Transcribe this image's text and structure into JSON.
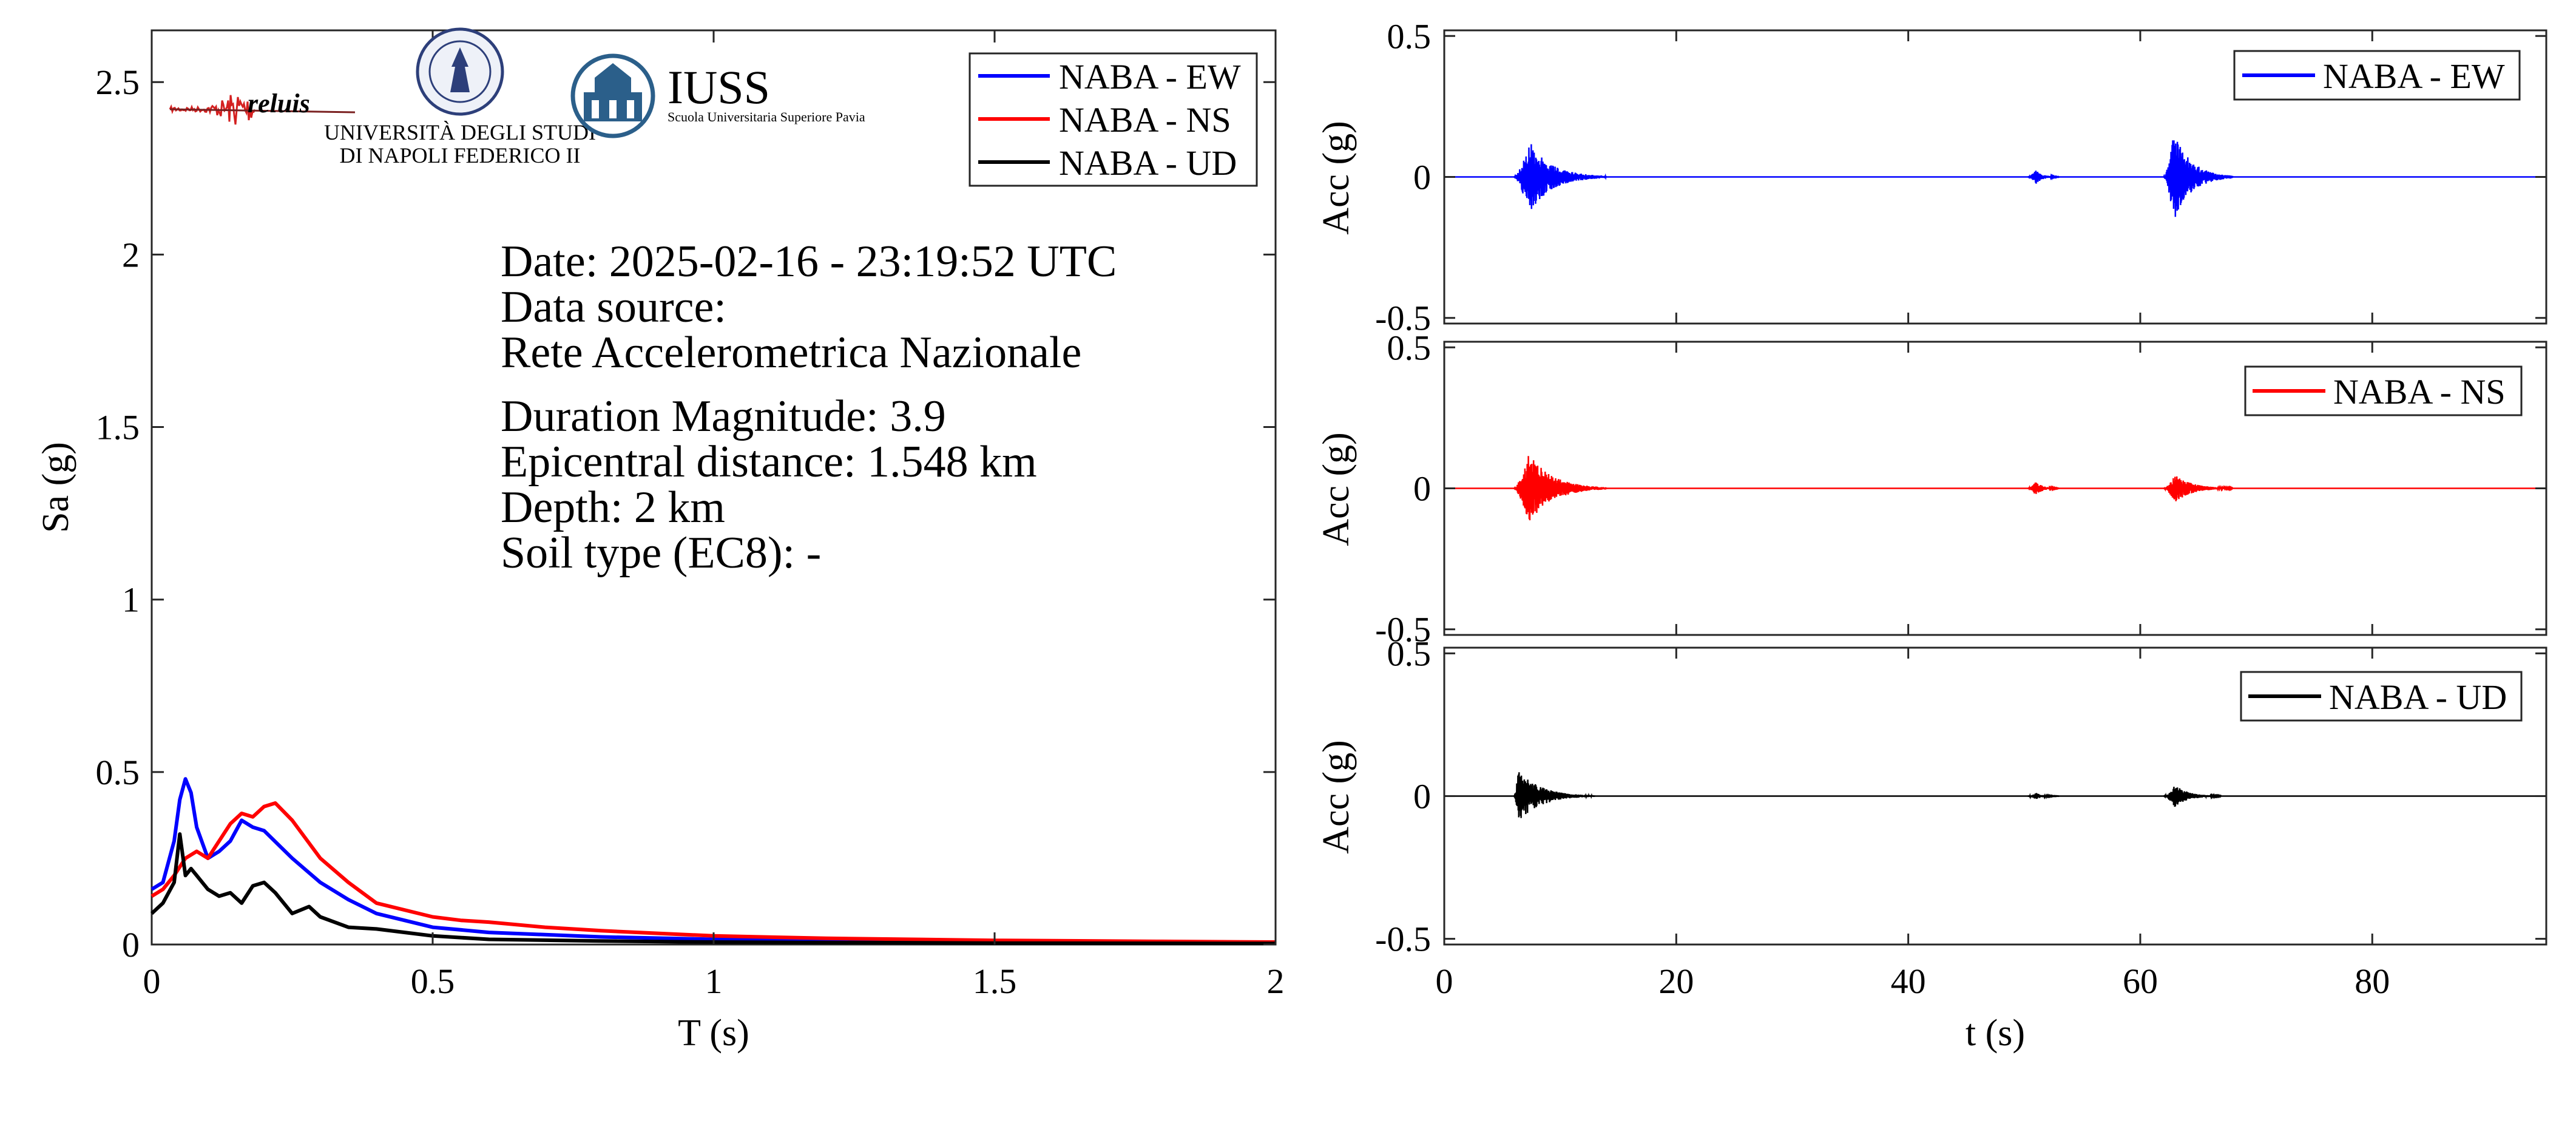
{
  "chart_data": [
    {
      "type": "line",
      "panel": "response-spectrum",
      "xlabel": "T (s)",
      "ylabel": "Sa (g)",
      "xlim": [
        0,
        2
      ],
      "ylim": [
        0,
        2.65
      ],
      "xticks": [
        "0",
        "0.5",
        "1",
        "1.5",
        "2"
      ],
      "yticks": [
        "0",
        "0.5",
        "1",
        "1.5",
        "2",
        "2.5"
      ],
      "xtick_values": [
        0,
        0.5,
        1,
        1.5,
        2
      ],
      "ytick_values": [
        0,
        0.5,
        1,
        1.5,
        2,
        2.5
      ],
      "grid": false,
      "legend_position": "top-right",
      "info_lines": [
        "Date: 2025-02-16 - 23:19:52 UTC",
        "Data source:",
        "Rete Accelerometrica Nazionale",
        "Duration Magnitude: 3.9",
        "Epicentral distance: 1.548 km",
        "Depth: 2 km",
        "Soil type (EC8): -"
      ],
      "series": [
        {
          "name": "NABA - EW",
          "color": "#0000ff",
          "x": [
            0,
            0.02,
            0.04,
            0.05,
            0.06,
            0.07,
            0.08,
            0.1,
            0.12,
            0.14,
            0.16,
            0.18,
            0.2,
            0.25,
            0.3,
            0.35,
            0.4,
            0.5,
            0.6,
            0.8,
            1.0,
            1.2,
            1.5,
            1.8,
            2.0
          ],
          "y": [
            0.16,
            0.18,
            0.3,
            0.42,
            0.48,
            0.44,
            0.34,
            0.25,
            0.27,
            0.3,
            0.36,
            0.34,
            0.33,
            0.25,
            0.18,
            0.13,
            0.09,
            0.05,
            0.035,
            0.022,
            0.015,
            0.011,
            0.008,
            0.006,
            0.005
          ]
        },
        {
          "name": "NABA - NS",
          "color": "#ff0000",
          "x": [
            0,
            0.02,
            0.04,
            0.06,
            0.08,
            0.1,
            0.12,
            0.14,
            0.16,
            0.18,
            0.2,
            0.22,
            0.25,
            0.3,
            0.35,
            0.4,
            0.5,
            0.55,
            0.6,
            0.7,
            0.8,
            1.0,
            1.2,
            1.5,
            1.8,
            2.0
          ],
          "y": [
            0.14,
            0.16,
            0.2,
            0.25,
            0.27,
            0.25,
            0.3,
            0.35,
            0.38,
            0.37,
            0.4,
            0.41,
            0.36,
            0.25,
            0.18,
            0.12,
            0.08,
            0.07,
            0.065,
            0.05,
            0.04,
            0.025,
            0.018,
            0.012,
            0.009,
            0.007
          ]
        },
        {
          "name": "NABA - UD",
          "color": "#000000",
          "x": [
            0,
            0.02,
            0.04,
            0.05,
            0.06,
            0.07,
            0.08,
            0.1,
            0.12,
            0.14,
            0.16,
            0.18,
            0.2,
            0.22,
            0.25,
            0.28,
            0.3,
            0.35,
            0.4,
            0.5,
            0.6,
            0.8,
            1.0,
            1.5,
            2.0
          ],
          "y": [
            0.09,
            0.12,
            0.18,
            0.32,
            0.2,
            0.22,
            0.2,
            0.16,
            0.14,
            0.15,
            0.12,
            0.17,
            0.18,
            0.15,
            0.09,
            0.11,
            0.08,
            0.05,
            0.045,
            0.025,
            0.015,
            0.01,
            0.007,
            0.004,
            0.003
          ]
        }
      ]
    },
    {
      "type": "line",
      "panel": "accelerogram-ew",
      "xlabel": "",
      "ylabel": "Acc (g)",
      "xlim": [
        0,
        95
      ],
      "ylim": [
        -0.52,
        0.52
      ],
      "yticks": [
        "-0.5",
        "0",
        "0.5"
      ],
      "ytick_values": [
        -0.5,
        0,
        0.5
      ],
      "xtick_values": [
        0,
        20,
        40,
        60,
        80
      ],
      "grid": false,
      "legend_position": "top-right",
      "series": [
        {
          "name": "NABA - EW",
          "color": "#0000ff",
          "bursts": [
            {
              "t0": 6.0,
              "t_peak": 7.3,
              "t1": 14.0,
              "peak": 0.13
            },
            {
              "t0": 50.3,
              "t_peak": 51.0,
              "t1": 53.0,
              "peak": 0.025
            },
            {
              "t0": 62.0,
              "t_peak": 62.9,
              "t1": 68.0,
              "peak": 0.16
            }
          ]
        }
      ]
    },
    {
      "type": "line",
      "panel": "accelerogram-ns",
      "xlabel": "",
      "ylabel": "Acc (g)",
      "xlim": [
        0,
        95
      ],
      "ylim": [
        -0.52,
        0.52
      ],
      "yticks": [
        "-0.5",
        "0",
        "0.5"
      ],
      "ytick_values": [
        -0.5,
        0,
        0.5
      ],
      "xtick_values": [
        0,
        20,
        40,
        60,
        80
      ],
      "grid": false,
      "legend_position": "top-right",
      "series": [
        {
          "name": "NABA - NS",
          "color": "#ff0000",
          "bursts": [
            {
              "t0": 6.0,
              "t_peak": 7.3,
              "t1": 14.0,
              "peak": 0.13
            },
            {
              "t0": 50.3,
              "t_peak": 51.0,
              "t1": 53.0,
              "peak": 0.025
            },
            {
              "t0": 62.0,
              "t_peak": 63.0,
              "t1": 68.0,
              "peak": 0.05
            }
          ]
        }
      ]
    },
    {
      "type": "line",
      "panel": "accelerogram-ud",
      "xlabel": "t (s)",
      "ylabel": "Acc (g)",
      "xlim": [
        0,
        95
      ],
      "ylim": [
        -0.52,
        0.52
      ],
      "yticks": [
        "-0.5",
        "0",
        "0.5"
      ],
      "ytick_values": [
        -0.5,
        0,
        0.5
      ],
      "xticks": [
        "0",
        "20",
        "40",
        "60",
        "80"
      ],
      "xtick_values": [
        0,
        20,
        40,
        60,
        80
      ],
      "grid": false,
      "legend_position": "top-right",
      "series": [
        {
          "name": "NABA - UD",
          "color": "#000000",
          "bursts": [
            {
              "t0": 6.0,
              "t_peak": 6.4,
              "t1": 13.0,
              "peak": 0.09
            },
            {
              "t0": 50.3,
              "t_peak": 51.0,
              "t1": 53.0,
              "peak": 0.012
            },
            {
              "t0": 62.0,
              "t_peak": 63.0,
              "t1": 67.0,
              "peak": 0.04
            }
          ]
        }
      ]
    }
  ],
  "logos": {
    "reluis": "reluis",
    "unina_line1": "UNIVERSITÀ DEGLI STUDI",
    "unina_line2": "DI NAPOLI FEDERICO II",
    "iuss_title": "IUSS",
    "iuss_subtitle": "Scuola Universitaria Superiore Pavia"
  }
}
